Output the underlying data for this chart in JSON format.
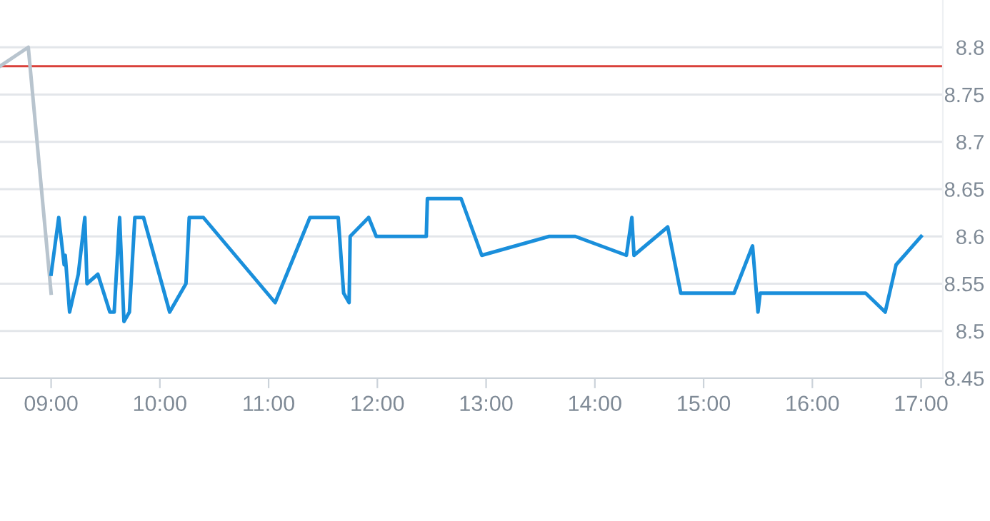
{
  "chart_data": {
    "type": "line",
    "xlim": [
      8.53,
      17.2
    ],
    "ylim": [
      8.45,
      8.85
    ],
    "xticks": [
      {
        "value": 9,
        "label": "09:00"
      },
      {
        "value": 10,
        "label": "10:00"
      },
      {
        "value": 11,
        "label": "11:00"
      },
      {
        "value": 12,
        "label": "12:00"
      },
      {
        "value": 13,
        "label": "13:00"
      },
      {
        "value": 14,
        "label": "14:00"
      },
      {
        "value": 15,
        "label": "15:00"
      },
      {
        "value": 16,
        "label": "16:00"
      },
      {
        "value": 17,
        "label": "17:00"
      }
    ],
    "yticks": [
      8.45,
      {
        "value": 8.5,
        "label": "8.5"
      },
      8.55,
      {
        "value": 8.6,
        "label": "8.6"
      },
      8.65,
      {
        "value": 8.7,
        "label": "8.7"
      },
      8.75,
      {
        "value": 8.8,
        "label": "8.8"
      }
    ],
    "grid": "y",
    "legend": false,
    "marker": "none",
    "line_style": "solid",
    "ref_lines": [
      {
        "axis": "y",
        "value": 8.78,
        "color": "#d9403a"
      }
    ],
    "series": [
      {
        "color": "#b8c4ce",
        "x": [
          8.53,
          8.79,
          9.0
        ],
        "values": [
          8.78,
          8.8,
          8.54
        ]
      },
      {
        "color": "#1a8fdb",
        "x": [
          9.0,
          9.07,
          9.12,
          9.13,
          9.17,
          9.25,
          9.31,
          9.33,
          9.43,
          9.54,
          9.58,
          9.63,
          9.67,
          9.72,
          9.77,
          9.85,
          10.09,
          10.24,
          10.27,
          10.4,
          11.06,
          11.38,
          11.64,
          11.69,
          11.74,
          11.75,
          11.92,
          11.99,
          12.45,
          12.46,
          12.77,
          12.96,
          13.58,
          13.82,
          14.29,
          14.34,
          14.36,
          14.67,
          14.79,
          15.28,
          15.45,
          15.5,
          15.52,
          16.49,
          16.67,
          16.77,
          17.0
        ],
        "values": [
          8.56,
          8.62,
          8.57,
          8.58,
          8.52,
          8.56,
          8.62,
          8.55,
          8.56,
          8.52,
          8.52,
          8.62,
          8.51,
          8.52,
          8.62,
          8.62,
          8.52,
          8.55,
          8.62,
          8.62,
          8.53,
          8.62,
          8.62,
          8.54,
          8.53,
          8.6,
          8.62,
          8.6,
          8.6,
          8.64,
          8.64,
          8.58,
          8.6,
          8.6,
          8.58,
          8.62,
          8.58,
          8.61,
          8.54,
          8.54,
          8.59,
          8.52,
          8.54,
          8.54,
          8.52,
          8.57,
          8.6
        ]
      }
    ]
  }
}
